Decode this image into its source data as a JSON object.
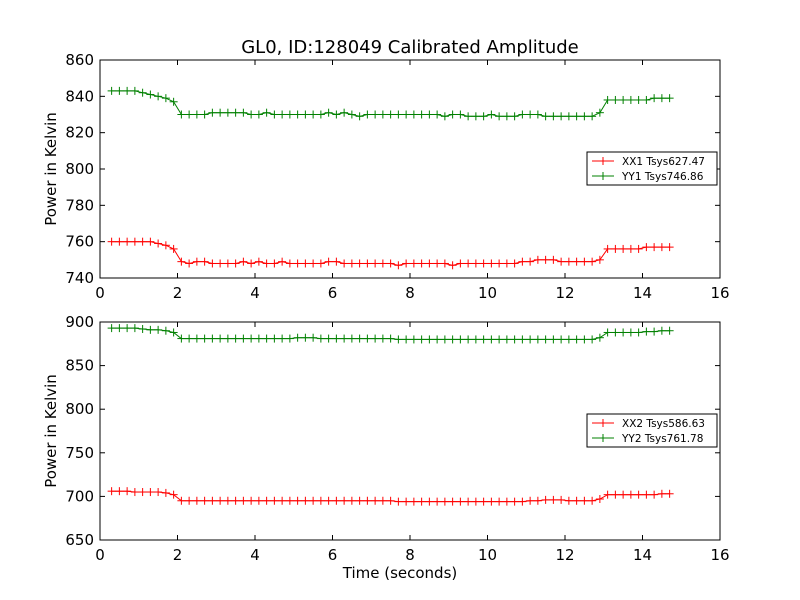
{
  "chart_data": {
    "title": "GL0, ID:128049 Calibrated Amplitude",
    "charts": [
      {
        "type": "line",
        "ylabel": "Power in Kelvin",
        "xlabel": "",
        "xlim": [
          0,
          16
        ],
        "ylim": [
          740,
          860
        ],
        "xticks": [
          "0",
          "2",
          "4",
          "6",
          "8",
          "10",
          "12",
          "14",
          "16"
        ],
        "yticks": [
          "740",
          "760",
          "780",
          "800",
          "820",
          "840",
          "860"
        ],
        "legend_position": "center-right",
        "x": [
          0.3,
          0.5,
          0.7,
          0.9,
          1.1,
          1.3,
          1.5,
          1.7,
          1.9,
          2.1,
          2.3,
          2.5,
          2.7,
          2.9,
          3.1,
          3.3,
          3.5,
          3.7,
          3.9,
          4.1,
          4.3,
          4.5,
          4.7,
          4.9,
          5.1,
          5.3,
          5.5,
          5.7,
          5.9,
          6.1,
          6.3,
          6.5,
          6.7,
          6.9,
          7.1,
          7.3,
          7.5,
          7.7,
          7.9,
          8.1,
          8.3,
          8.5,
          8.7,
          8.9,
          9.1,
          9.3,
          9.5,
          9.7,
          9.9,
          10.1,
          10.3,
          10.5,
          10.7,
          10.9,
          11.1,
          11.3,
          11.5,
          11.7,
          11.9,
          12.1,
          12.3,
          12.5,
          12.7,
          12.9,
          13.1,
          13.3,
          13.5,
          13.7,
          13.9,
          14.1,
          14.3,
          14.5,
          14.7
        ],
        "series": [
          {
            "name": "XX1 Tsys627.47",
            "color": "#ff0000",
            "values": [
              760,
              760,
              760,
              760,
              760,
              760,
              759,
              758,
              756,
              749,
              748,
              749,
              749,
              748,
              748,
              748,
              748,
              749,
              748,
              749,
              748,
              748,
              749,
              748,
              748,
              748,
              748,
              748,
              749,
              749,
              748,
              748,
              748,
              748,
              748,
              748,
              748,
              747,
              748,
              748,
              748,
              748,
              748,
              748,
              747,
              748,
              748,
              748,
              748,
              748,
              748,
              748,
              748,
              749,
              749,
              750,
              750,
              750,
              749,
              749,
              749,
              749,
              749,
              750,
              756,
              756,
              756,
              756,
              756,
              757,
              757,
              757,
              757
            ]
          },
          {
            "name": "YY1 Tsys746.86",
            "color": "#008000",
            "values": [
              843,
              843,
              843,
              843,
              842,
              841,
              840,
              839,
              837,
              830,
              830,
              830,
              830,
              831,
              831,
              831,
              831,
              831,
              830,
              830,
              831,
              830,
              830,
              830,
              830,
              830,
              830,
              830,
              831,
              830,
              831,
              830,
              829,
              830,
              830,
              830,
              830,
              830,
              830,
              830,
              830,
              830,
              830,
              829,
              830,
              830,
              829,
              829,
              829,
              830,
              829,
              829,
              829,
              830,
              830,
              830,
              829,
              829,
              829,
              829,
              829,
              829,
              829,
              831,
              838,
              838,
              838,
              838,
              838,
              838,
              839,
              839,
              839
            ]
          }
        ]
      },
      {
        "type": "line",
        "ylabel": "Power in Kelvin",
        "xlabel": "Time (seconds)",
        "xlim": [
          0,
          16
        ],
        "ylim": [
          650,
          900
        ],
        "xticks": [
          "0",
          "2",
          "4",
          "6",
          "8",
          "10",
          "12",
          "14",
          "16"
        ],
        "yticks": [
          "650",
          "700",
          "750",
          "800",
          "850",
          "900"
        ],
        "legend_position": "center-right",
        "x": [
          0.3,
          0.5,
          0.7,
          0.9,
          1.1,
          1.3,
          1.5,
          1.7,
          1.9,
          2.1,
          2.3,
          2.5,
          2.7,
          2.9,
          3.1,
          3.3,
          3.5,
          3.7,
          3.9,
          4.1,
          4.3,
          4.5,
          4.7,
          4.9,
          5.1,
          5.3,
          5.5,
          5.7,
          5.9,
          6.1,
          6.3,
          6.5,
          6.7,
          6.9,
          7.1,
          7.3,
          7.5,
          7.7,
          7.9,
          8.1,
          8.3,
          8.5,
          8.7,
          8.9,
          9.1,
          9.3,
          9.5,
          9.7,
          9.9,
          10.1,
          10.3,
          10.5,
          10.7,
          10.9,
          11.1,
          11.3,
          11.5,
          11.7,
          11.9,
          12.1,
          12.3,
          12.5,
          12.7,
          12.9,
          13.1,
          13.3,
          13.5,
          13.7,
          13.9,
          14.1,
          14.3,
          14.5,
          14.7
        ],
        "series": [
          {
            "name": "XX2 Tsys586.63",
            "color": "#ff0000",
            "values": [
              706,
              706,
              706,
              705,
              705,
              705,
              705,
              704,
              702,
              695,
              695,
              695,
              695,
              695,
              695,
              695,
              695,
              695,
              695,
              695,
              695,
              695,
              695,
              695,
              695,
              695,
              695,
              695,
              695,
              695,
              695,
              695,
              695,
              695,
              695,
              695,
              695,
              694,
              694,
              694,
              694,
              694,
              694,
              694,
              694,
              694,
              694,
              694,
              694,
              694,
              694,
              694,
              694,
              694,
              695,
              695,
              696,
              696,
              696,
              695,
              695,
              695,
              695,
              697,
              702,
              702,
              702,
              702,
              702,
              702,
              702,
              703,
              703
            ]
          },
          {
            "name": "YY2 Tsys761.78",
            "color": "#008000",
            "values": [
              893,
              893,
              893,
              893,
              892,
              891,
              891,
              890,
              888,
              881,
              881,
              881,
              881,
              881,
              881,
              881,
              881,
              881,
              881,
              881,
              881,
              881,
              881,
              881,
              882,
              882,
              882,
              881,
              881,
              881,
              881,
              881,
              881,
              881,
              881,
              881,
              881,
              880,
              880,
              880,
              880,
              880,
              880,
              880,
              880,
              880,
              880,
              880,
              880,
              880,
              880,
              880,
              880,
              880,
              880,
              880,
              880,
              880,
              880,
              880,
              880,
              880,
              880,
              882,
              888,
              888,
              888,
              888,
              888,
              889,
              889,
              890,
              890
            ]
          }
        ]
      }
    ]
  }
}
